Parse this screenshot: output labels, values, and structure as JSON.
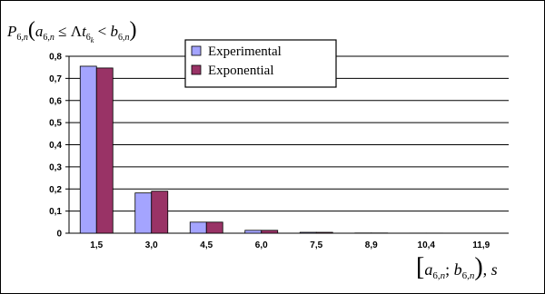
{
  "chart_data": {
    "type": "bar",
    "title": "",
    "ylabel": "P_{6,n}(a_{6,n} ≤ Δt_{6_k} < b_{6,n})",
    "xlabel": "[a_{6,n}; b_{6,n}), s",
    "categories": [
      "1,5",
      "3,0",
      "4,5",
      "6,0",
      "7,5",
      "8,9",
      "10,4",
      "11,9"
    ],
    "yticks": [
      "0",
      "0,1",
      "0,2",
      "0,3",
      "0,4",
      "0,5",
      "0,6",
      "0,7",
      "0,8"
    ],
    "ylim": [
      0,
      0.8
    ],
    "grid": true,
    "legend_position": "top",
    "series": [
      {
        "name": "Experimental",
        "color": "#a4a4ff",
        "values": [
          0.755,
          0.182,
          0.05,
          0.013,
          0.004,
          0.001,
          0.0005,
          0.0002
        ]
      },
      {
        "name": "Exponential",
        "color": "#993366",
        "values": [
          0.747,
          0.19,
          0.05,
          0.013,
          0.004,
          0.001,
          0.0005,
          0.0002
        ]
      }
    ]
  }
}
